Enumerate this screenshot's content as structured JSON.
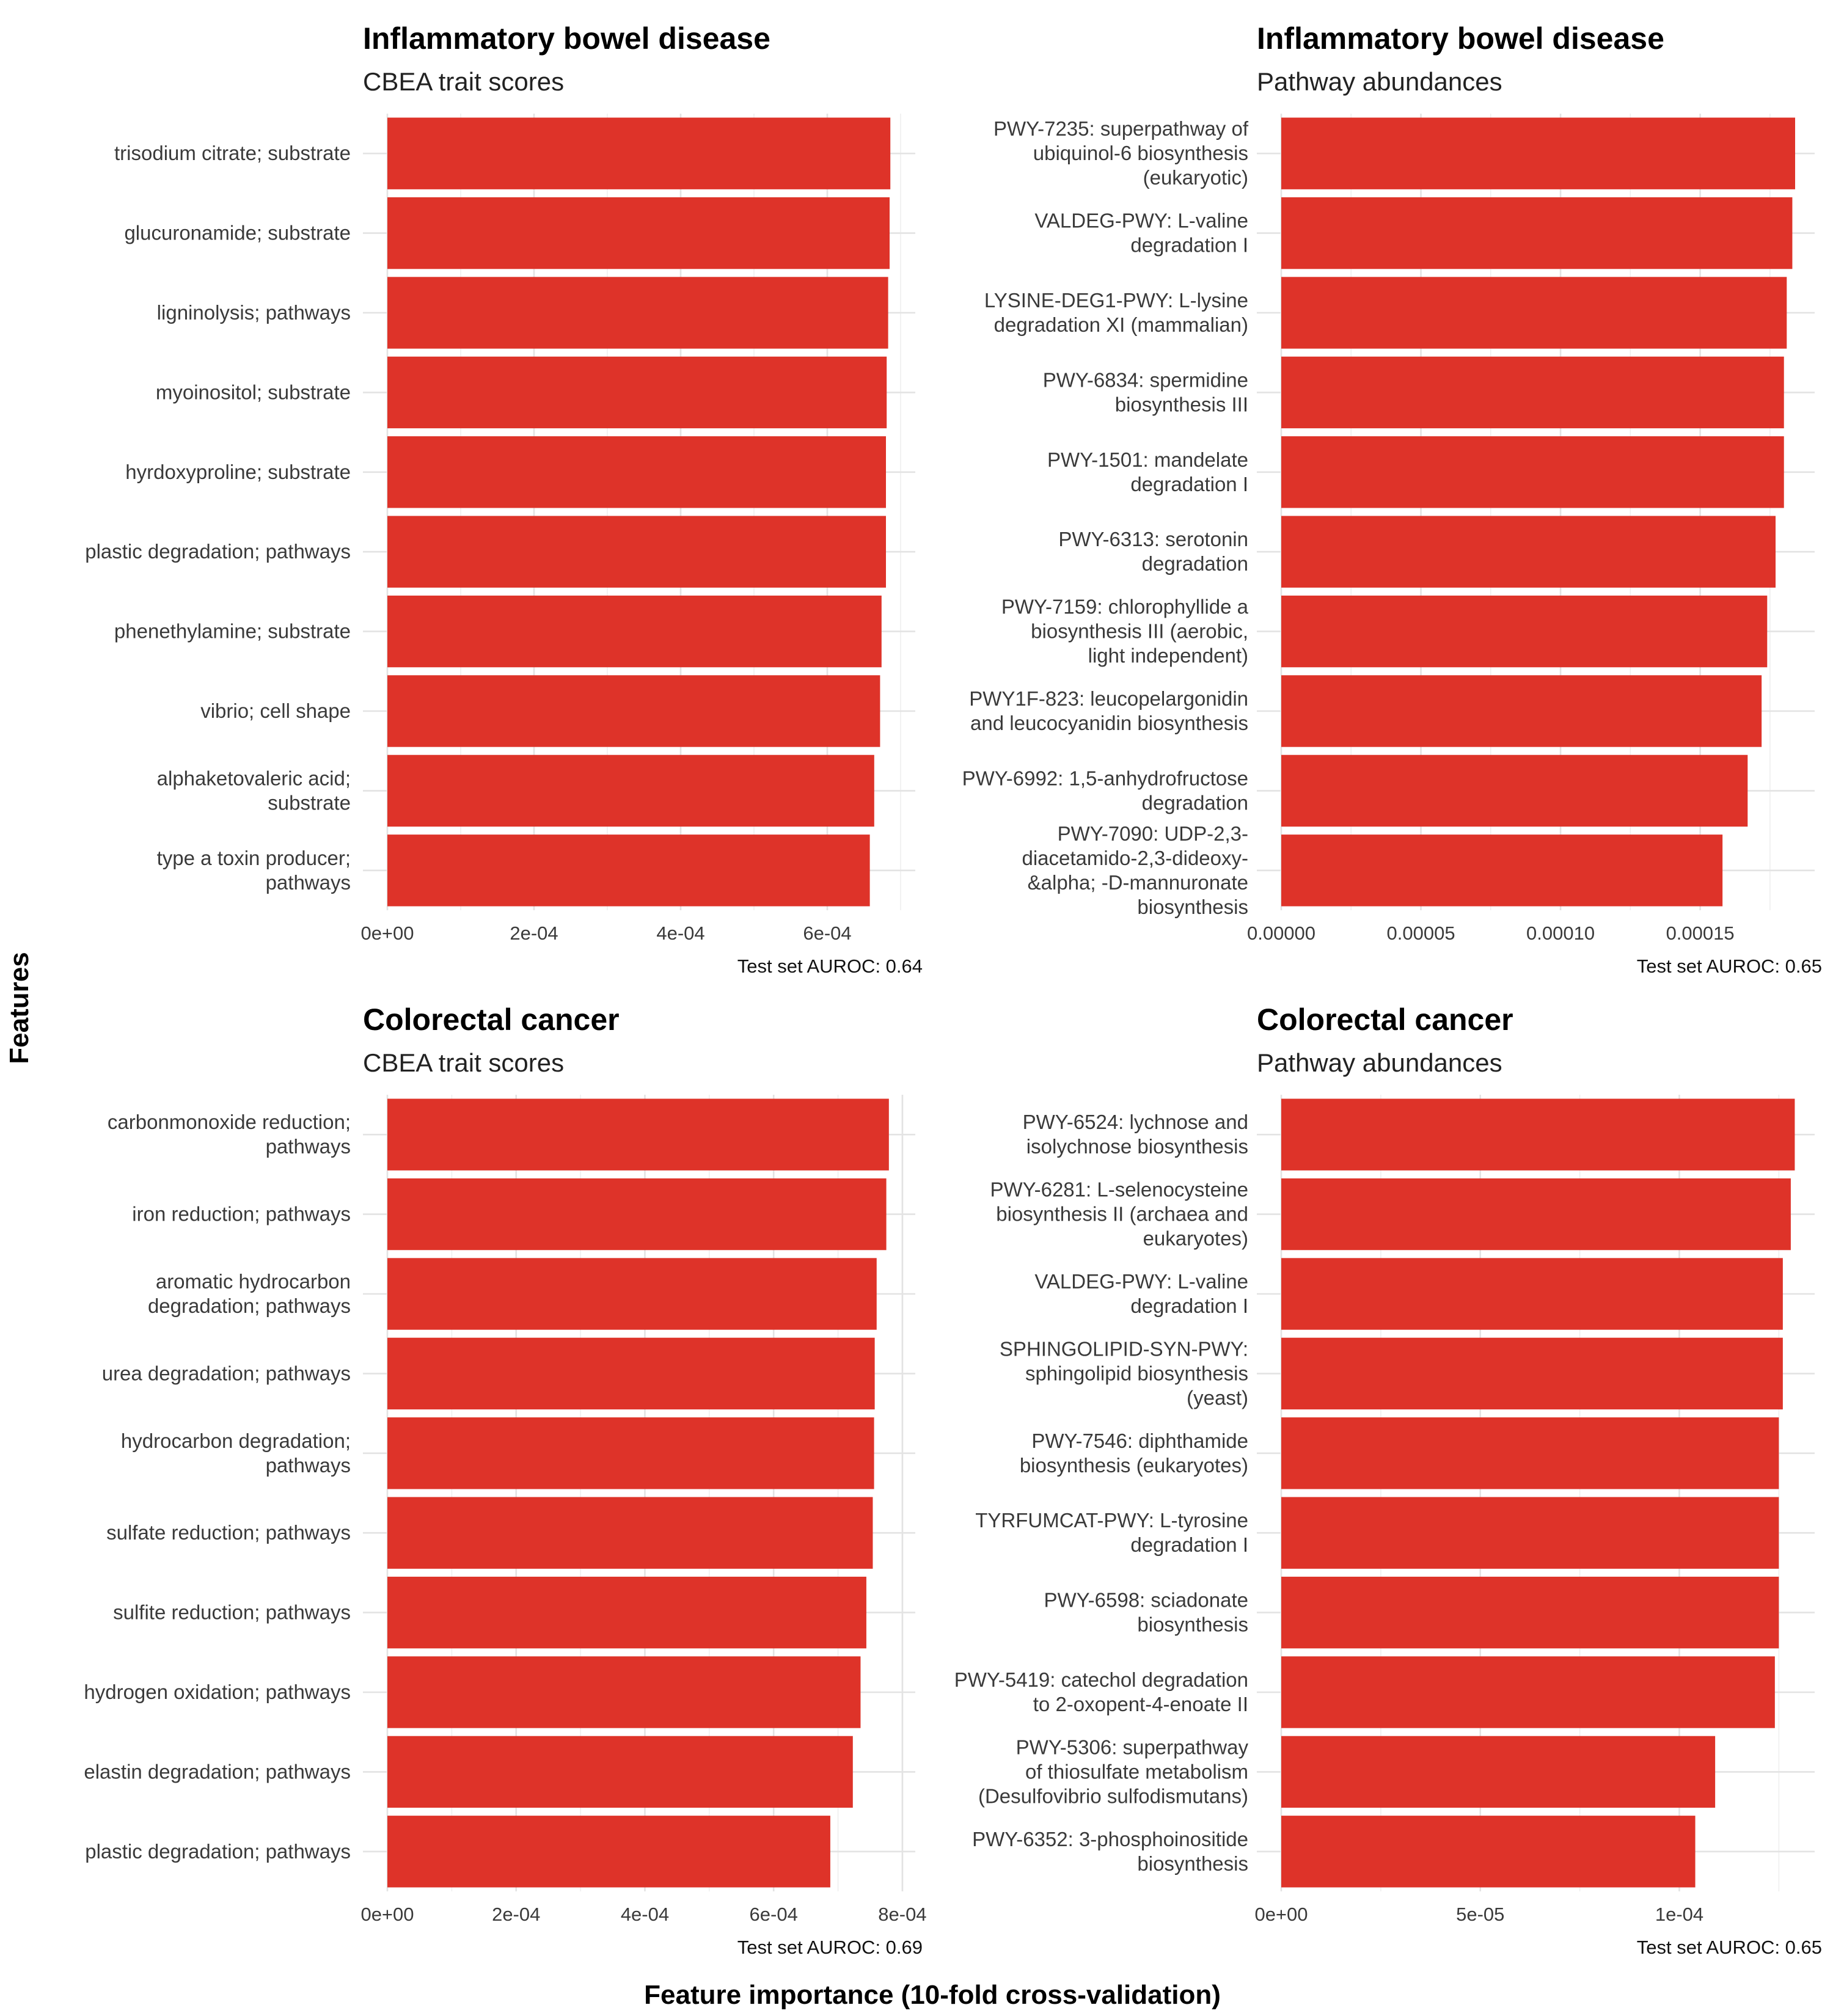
{
  "colors": {
    "bar": "#DE3329",
    "grid": "#E3E3E3"
  },
  "axis_titles": {
    "x": "Feature importance (10-fold cross-validation)",
    "y": "Features"
  },
  "chart_data": [
    {
      "type": "bar",
      "orientation": "horizontal",
      "title": "Inflammatory bowel disease",
      "subtitle": "CBEA trait scores",
      "caption": "Test set AUROC: 0.64",
      "xlim": [
        0,
        0.00072
      ],
      "xticks": [
        0,
        0.0002,
        0.0004,
        0.0006
      ],
      "xtick_labels": [
        "0e+00",
        "2e-04",
        "4e-04",
        "6e-04"
      ],
      "categories": [
        [
          "trisodium citrate; substrate"
        ],
        [
          "glucuronamide; substrate"
        ],
        [
          "ligninolysis; pathways"
        ],
        [
          "myoinositol; substrate"
        ],
        [
          "hyrdoxyproline; substrate"
        ],
        [
          "plastic degradation; pathways"
        ],
        [
          "phenethylamine; substrate"
        ],
        [
          "vibrio; cell shape"
        ],
        [
          "alphaketovaleric acid;",
          "substrate"
        ],
        [
          "type a toxin producer;",
          "pathways"
        ]
      ],
      "values": [
        0.000686,
        0.000685,
        0.000683,
        0.000681,
        0.00068,
        0.00068,
        0.000674,
        0.000672,
        0.000664,
        0.000658
      ]
    },
    {
      "type": "bar",
      "orientation": "horizontal",
      "title": "Inflammatory bowel disease",
      "subtitle": "Pathway abundances",
      "caption": "Test set AUROC: 0.65",
      "xlim": [
        0,
        0.000191
      ],
      "xticks": [
        0,
        5e-05,
        0.0001,
        0.00015
      ],
      "xtick_labels": [
        "0.00000",
        "0.00005",
        "0.00010",
        "0.00015"
      ],
      "categories": [
        [
          "PWY-7235: superpathway of",
          "ubiquinol-6 biosynthesis",
          "(eukaryotic)"
        ],
        [
          "VALDEG-PWY: L-valine",
          "degradation I"
        ],
        [
          "LYSINE-DEG1-PWY: L-lysine",
          "degradation XI (mammalian)"
        ],
        [
          "PWY-6834: spermidine",
          "biosynthesis III"
        ],
        [
          "PWY-1501: mandelate",
          "degradation I"
        ],
        [
          "PWY-6313: serotonin",
          "degradation"
        ],
        [
          "PWY-7159: chlorophyllide a",
          "biosynthesis III (aerobic,",
          "light independent)"
        ],
        [
          "PWY1F-823: leucopelargonidin",
          "and leucocyanidin biosynthesis"
        ],
        [
          "PWY-6992: 1,5-anhydrofructose",
          "degradation"
        ],
        [
          "PWY-7090: UDP-2,3-",
          "diacetamido-2,3-dideoxy-",
          "&alpha; -D-mannuronate",
          "biosynthesis"
        ]
      ],
      "values": [
        0.000184,
        0.000183,
        0.000181,
        0.00018,
        0.00018,
        0.000177,
        0.000174,
        0.000172,
        0.000167,
        0.000158
      ]
    },
    {
      "type": "bar",
      "orientation": "horizontal",
      "title": "Colorectal cancer",
      "subtitle": "CBEA trait scores",
      "caption": "Test set AUROC: 0.69",
      "xlim": [
        0,
        0.00082
      ],
      "xticks": [
        0,
        0.0002,
        0.0004,
        0.0006,
        0.0008
      ],
      "xtick_labels": [
        "0e+00",
        "2e-04",
        "4e-04",
        "6e-04",
        "8e-04"
      ],
      "categories": [
        [
          "carbonmonoxide reduction;",
          "pathways"
        ],
        [
          "iron reduction; pathways"
        ],
        [
          "aromatic hydrocarbon",
          "degradation; pathways"
        ],
        [
          "urea degradation; pathways"
        ],
        [
          "hydrocarbon degradation;",
          "pathways"
        ],
        [
          "sulfate reduction; pathways"
        ],
        [
          "sulfite reduction; pathways"
        ],
        [
          "hydrogen oxidation; pathways"
        ],
        [
          "elastin degradation; pathways"
        ],
        [
          "plastic degradation; pathways"
        ]
      ],
      "values": [
        0.000779,
        0.000775,
        0.00076,
        0.000757,
        0.000756,
        0.000754,
        0.000744,
        0.000735,
        0.000723,
        0.000688
      ]
    },
    {
      "type": "bar",
      "orientation": "horizontal",
      "title": "Colorectal cancer",
      "subtitle": "Pathway abundances",
      "caption": "Test set AUROC: 0.65",
      "xlim": [
        0,
        0.000134
      ],
      "xticks": [
        0,
        5e-05,
        0.0001
      ],
      "xtick_labels": [
        "0e+00",
        "5e-05",
        "1e-04"
      ],
      "categories": [
        [
          "PWY-6524: lychnose and",
          "isolychnose biosynthesis"
        ],
        [
          "PWY-6281: L-selenocysteine",
          "biosynthesis II (archaea and",
          "eukaryotes)"
        ],
        [
          "VALDEG-PWY: L-valine",
          "degradation I"
        ],
        [
          "SPHINGOLIPID-SYN-PWY:",
          "sphingolipid biosynthesis",
          "(yeast)"
        ],
        [
          "PWY-7546: diphthamide",
          "biosynthesis (eukaryotes)"
        ],
        [
          "TYRFUMCAT-PWY: L-tyrosine",
          "degradation I"
        ],
        [
          "PWY-6598: sciadonate",
          "biosynthesis"
        ],
        [
          "PWY-5419: catechol degradation",
          "to 2-oxopent-4-enoate II"
        ],
        [
          "PWY-5306: superpathway",
          "of thiosulfate metabolism",
          "(Desulfovibrio sulfodismutans)"
        ],
        [
          "PWY-6352: 3-phosphoinositide",
          "biosynthesis"
        ]
      ],
      "values": [
        0.000129,
        0.000128,
        0.000126,
        0.000126,
        0.000125,
        0.000125,
        0.000125,
        0.000124,
        0.000109,
        0.000104
      ]
    }
  ]
}
